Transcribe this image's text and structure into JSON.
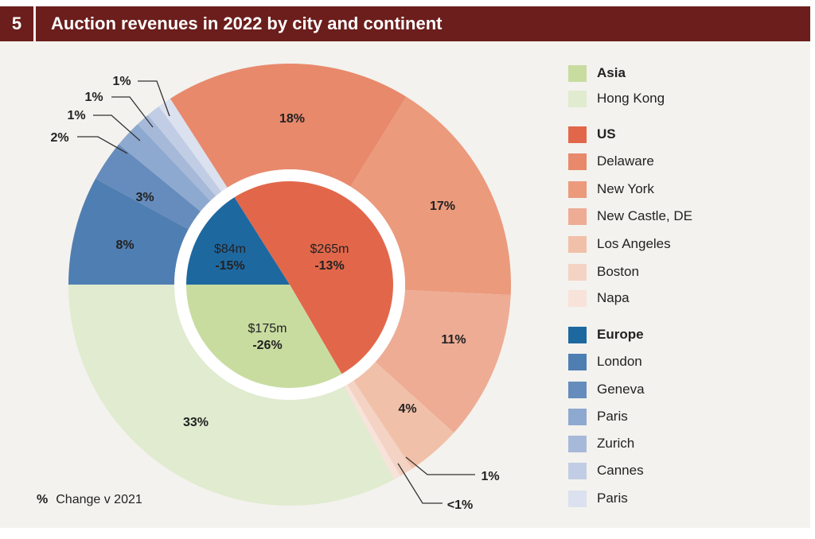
{
  "header": {
    "number": "5",
    "title": "Auction revenues in 2022 by city and continent"
  },
  "footnote": {
    "symbol": "%",
    "text": "Change v 2021"
  },
  "chart_data": {
    "type": "pie",
    "title": "Auction revenues in 2022 by city and continent",
    "inner": [
      {
        "name": "Europe",
        "value": 84,
        "value_label": "$84m",
        "change_label": "-15%",
        "color": "#1e68a0"
      },
      {
        "name": "US",
        "value": 265,
        "value_label": "$265m",
        "change_label": "-13%",
        "color": "#e2674a"
      },
      {
        "name": "Asia",
        "value": 175,
        "value_label": "$175m",
        "change_label": "-26%",
        "color": "#c8dca0"
      }
    ],
    "outer": [
      {
        "name": "London",
        "group": "Europe",
        "value": 8,
        "label": "8%",
        "color": "#4f7eb2"
      },
      {
        "name": "Geneva",
        "group": "Europe",
        "value": 3,
        "label": "3%",
        "color": "#658cbc"
      },
      {
        "name": "Paris",
        "group": "Europe",
        "value": 2,
        "label": "2%",
        "color": "#8ea9d0"
      },
      {
        "name": "Zurich",
        "group": "Europe",
        "value": 1,
        "label": "1%",
        "color": "#a7b9d9"
      },
      {
        "name": "Cannes",
        "group": "Europe",
        "value": 1,
        "label": "1%",
        "color": "#c1cde4"
      },
      {
        "name": "Paris",
        "group": "Europe",
        "value": 1,
        "label": "1%",
        "color": "#dbe1ee"
      },
      {
        "name": "Delaware",
        "group": "US",
        "value": 18,
        "label": "18%",
        "color": "#e8896c"
      },
      {
        "name": "New York",
        "group": "US",
        "value": 17,
        "label": "17%",
        "color": "#eb9a7c"
      },
      {
        "name": "New Castle, DE",
        "group": "US",
        "value": 11,
        "label": "11%",
        "color": "#eeac95"
      },
      {
        "name": "Los Angeles",
        "group": "US",
        "value": 4,
        "label": "4%",
        "color": "#f1c0a9"
      },
      {
        "name": "Boston",
        "group": "US",
        "value": 1,
        "label": "1%",
        "color": "#f4d3c4"
      },
      {
        "name": "Napa",
        "group": "US",
        "value": 0.5,
        "label": "<1%",
        "color": "#f8e3da"
      },
      {
        "name": "Hong Kong",
        "group": "Asia",
        "value": 33,
        "label": "33%",
        "color": "#e0ebcf"
      }
    ],
    "legend": [
      {
        "label": "Asia",
        "bold": true,
        "color": "#c8dca0"
      },
      {
        "label": "Hong Kong",
        "color": "#e0ebcf"
      },
      {
        "label": "US",
        "bold": true,
        "color": "#e2674a"
      },
      {
        "label": "Delaware",
        "color": "#e8896c"
      },
      {
        "label": "New York",
        "color": "#eb9a7c"
      },
      {
        "label": "New Castle, DE",
        "color": "#eeac95"
      },
      {
        "label": "Los Angeles",
        "color": "#f1c0a9"
      },
      {
        "label": "Boston",
        "color": "#f4d3c4"
      },
      {
        "label": "Napa",
        "color": "#f8e3da"
      },
      {
        "label": "Europe",
        "bold": true,
        "color": "#1e68a0"
      },
      {
        "label": "London",
        "color": "#4f7eb2"
      },
      {
        "label": "Geneva",
        "color": "#658cbc"
      },
      {
        "label": "Paris",
        "color": "#8ea9d0"
      },
      {
        "label": "Zurich",
        "color": "#a7b9d9"
      },
      {
        "label": "Cannes",
        "color": "#c1cde4"
      },
      {
        "label": "Paris",
        "color": "#dbe1ee"
      }
    ],
    "legend_placement": "right"
  }
}
